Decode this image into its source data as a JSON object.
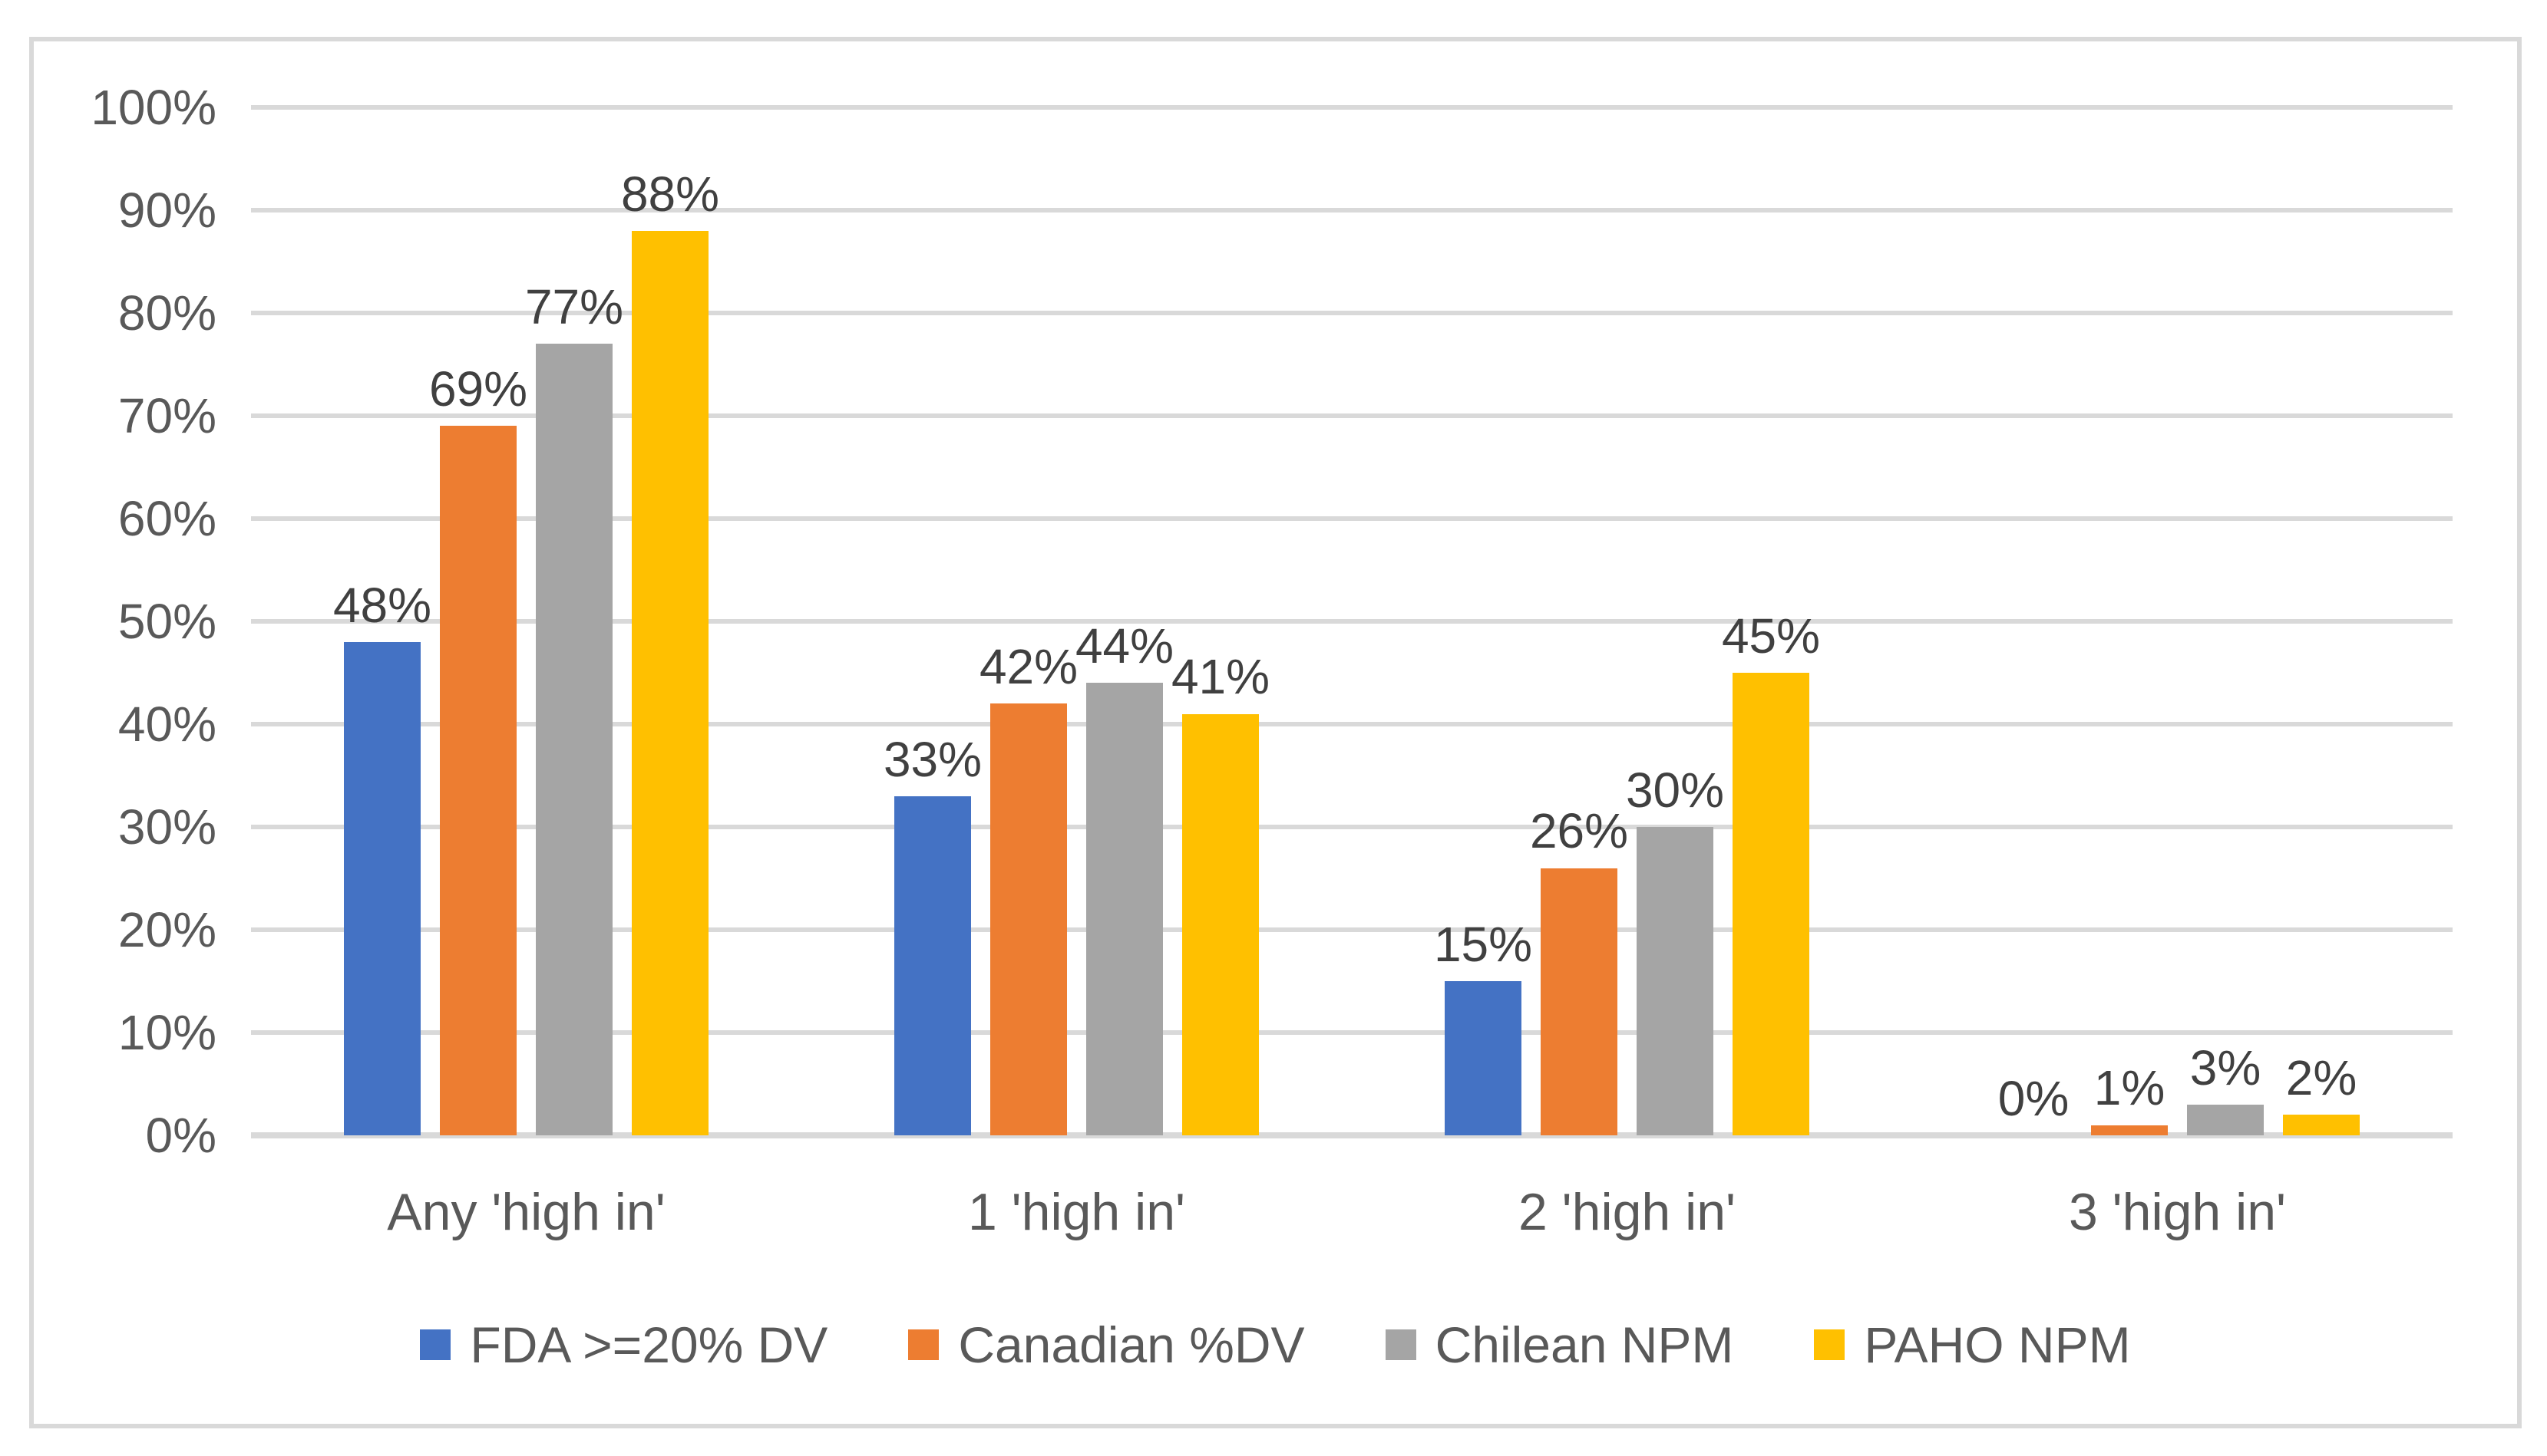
{
  "chart_data": {
    "type": "bar",
    "title": "",
    "categories": [
      "Any 'high in'",
      "1 'high in'",
      "2 'high in'",
      "3 'high in'"
    ],
    "series": [
      {
        "name": "FDA >=20% DV",
        "color": "#4472C4",
        "values": [
          48,
          33,
          15,
          0
        ]
      },
      {
        "name": "Canadian %DV",
        "color": "#ED7D31",
        "values": [
          69,
          42,
          26,
          1
        ]
      },
      {
        "name": "Chilean NPM",
        "color": "#A5A5A5",
        "values": [
          77,
          44,
          30,
          3
        ]
      },
      {
        "name": "PAHO NPM",
        "color": "#FFC000",
        "values": [
          88,
          41,
          45,
          2
        ]
      }
    ],
    "value_suffix": "%",
    "y_axis": {
      "min": 0,
      "max": 100,
      "step": 10,
      "ticks": [
        "0%",
        "10%",
        "20%",
        "30%",
        "40%",
        "50%",
        "60%",
        "70%",
        "80%",
        "90%",
        "100%"
      ]
    },
    "xlabel": "",
    "ylabel": "",
    "grid": true,
    "legend_position": "bottom",
    "data_labels": true
  },
  "styles": {
    "background_color": "#FFFFFF",
    "frame_border_color": "#D9D9D9",
    "gridline_color": "#D9D9D9",
    "axis_line_color": "#D9D9D9",
    "tick_text_color": "#595959",
    "category_text_color": "#595959",
    "legend_text_color": "#595959",
    "data_label_color": "#404040"
  }
}
